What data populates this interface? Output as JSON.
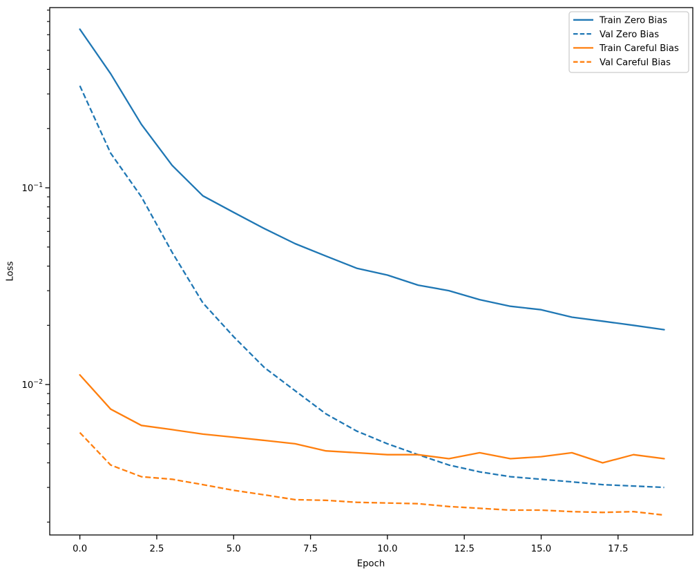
{
  "figure": {
    "background": "#ffffff",
    "text_color": "#000000",
    "spine_color": "#000000",
    "legend_edge_color": "#cccccc"
  },
  "chart_data": {
    "type": "line",
    "title": "",
    "xlabel": "Epoch",
    "ylabel": "Loss",
    "yscale": "log",
    "grid": false,
    "legend_position": "upper right",
    "x": [
      0,
      1,
      2,
      3,
      4,
      5,
      6,
      7,
      8,
      9,
      10,
      11,
      12,
      13,
      14,
      15,
      16,
      17,
      18,
      19
    ],
    "xlim": [
      -0.98,
      19.93
    ],
    "ylim": [
      0.00172,
      0.824
    ],
    "xticks": [
      0.0,
      2.5,
      5.0,
      7.5,
      10.0,
      12.5,
      15.0,
      17.5
    ],
    "xtick_labels": [
      "0.0",
      "2.5",
      "5.0",
      "7.5",
      "10.0",
      "12.5",
      "15.0",
      "17.5"
    ],
    "ytick_labels": [
      {
        "base": "10",
        "exp": "−1",
        "value": 0.1
      },
      {
        "base": "10",
        "exp": "−2",
        "value": 0.01
      }
    ],
    "series": [
      {
        "name": "Train Zero Bias",
        "color": "#1f77b4",
        "style": "solid",
        "values": [
          0.64,
          0.38,
          0.21,
          0.13,
          0.091,
          0.075,
          0.062,
          0.052,
          0.045,
          0.039,
          0.036,
          0.032,
          0.03,
          0.027,
          0.025,
          0.024,
          0.022,
          0.021,
          0.02,
          0.019
        ]
      },
      {
        "name": "Val Zero Bias",
        "color": "#1f77b4",
        "style": "dashed",
        "values": [
          0.33,
          0.15,
          0.09,
          0.047,
          0.026,
          0.0175,
          0.0122,
          0.0093,
          0.0071,
          0.0058,
          0.005,
          0.0044,
          0.0039,
          0.0036,
          0.0034,
          0.0033,
          0.0032,
          0.0031,
          0.00305,
          0.003
        ]
      },
      {
        "name": "Train Careful Bias",
        "color": "#ff7f0e",
        "style": "solid",
        "values": [
          0.0112,
          0.0075,
          0.0062,
          0.0059,
          0.0056,
          0.0054,
          0.0052,
          0.005,
          0.0046,
          0.0045,
          0.0044,
          0.0044,
          0.0042,
          0.0045,
          0.0042,
          0.0043,
          0.0045,
          0.004,
          0.0044,
          0.0042
        ]
      },
      {
        "name": "Val Careful Bias",
        "color": "#ff7f0e",
        "style": "dashed",
        "values": [
          0.0057,
          0.0039,
          0.0034,
          0.0033,
          0.0031,
          0.0029,
          0.00275,
          0.0026,
          0.00258,
          0.00252,
          0.0025,
          0.00248,
          0.0024,
          0.00235,
          0.0023,
          0.0023,
          0.00226,
          0.00224,
          0.00226,
          0.00217
        ]
      }
    ]
  }
}
